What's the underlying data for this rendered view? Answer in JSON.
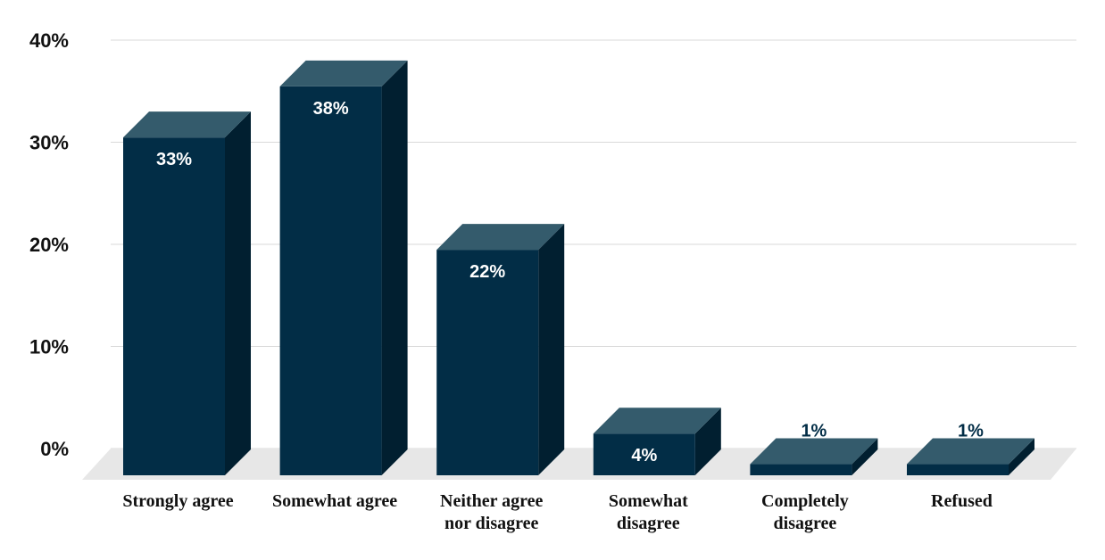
{
  "chart_data": {
    "type": "bar",
    "categories": [
      [
        "Strongly agree"
      ],
      [
        "Somewhat agree"
      ],
      [
        "Neither agree",
        "nor disagree"
      ],
      [
        "Somewhat",
        "disagree"
      ],
      [
        "Completely",
        "disagree"
      ],
      [
        "Refused"
      ]
    ],
    "values": [
      33,
      38,
      22,
      4,
      1,
      1
    ],
    "data_labels": [
      "33%",
      "38%",
      "22%",
      "4%",
      "1%",
      "1%"
    ],
    "y_ticks": [
      "0%",
      "10%",
      "20%",
      "30%",
      "40%"
    ],
    "ylim": [
      0,
      40
    ],
    "title": "",
    "xlabel": "",
    "ylabel": "",
    "grid": true,
    "colors": {
      "bar_front": "#022d46",
      "bar_top": "#345b6c",
      "bar_side": "#011f30",
      "floor": "#e7e7e7",
      "gridline": "#d9d9d9",
      "label_inside": "#ffffff",
      "label_outside": "#022d46"
    }
  }
}
